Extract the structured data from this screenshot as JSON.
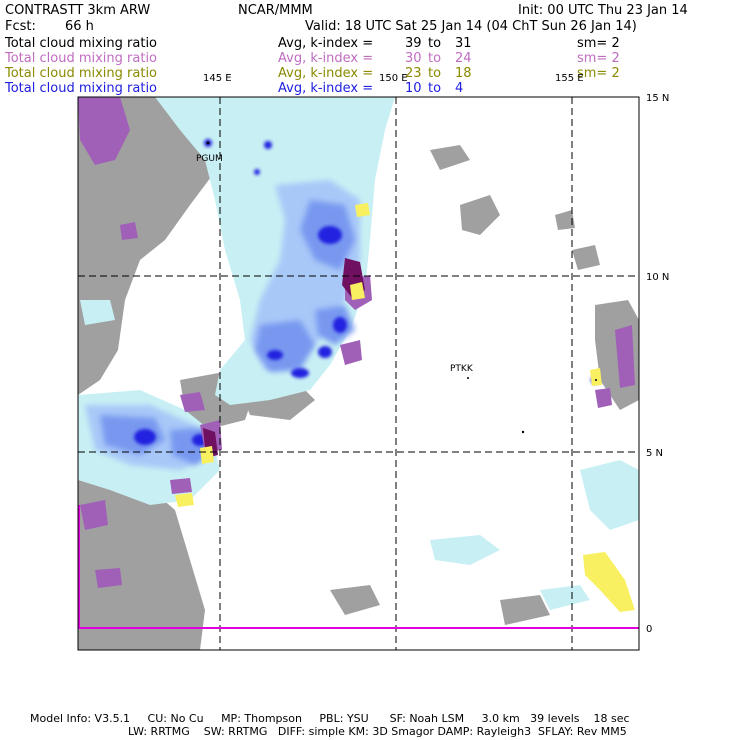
{
  "header": {
    "model": "CONTRASTT 3km ARW",
    "org": "NCAR/MMM",
    "init": "Init: 00 UTC Thu 23 Jan 14",
    "fcst_label": "Fcst:",
    "fcst_value": "66 h",
    "valid": "Valid: 18 UTC Sat 25 Jan 14 (04 ChT Sun 26 Jan 14)"
  },
  "fields": [
    {
      "name": "Total cloud mixing ratio",
      "stat": "Avg, k-index =",
      "from": "39",
      "to_word": "to",
      "to": "31",
      "sm": "sm= 2",
      "color": "#000000"
    },
    {
      "name": "Total cloud mixing ratio",
      "stat": "Avg, k-index =",
      "from": "30",
      "to_word": "to",
      "to": "24",
      "sm": "sm= 2",
      "color": "#c06cc0"
    },
    {
      "name": "Total cloud mixing ratio",
      "stat": "Avg, k-index =",
      "from": "23",
      "to_word": "to",
      "to": "18",
      "sm": "sm= 2",
      "color": "#8a8a00"
    },
    {
      "name": "Total cloud mixing ratio",
      "stat": "Avg, k-index =",
      "from": "10",
      "to_word": "to",
      "to": "4",
      "sm": "",
      "color": "#2020e0"
    }
  ],
  "map": {
    "lon_labels": [
      "145 E",
      "150 E",
      "155 E"
    ],
    "lat_labels": [
      "15 N",
      "10 N",
      "5 N",
      "0"
    ],
    "stations": [
      "PGUM",
      "PTKK"
    ],
    "colors": {
      "gray": "#a0a0a0",
      "light_cyan": "#c8f0f4",
      "light_blue": "#a8c8f8",
      "mid_blue": "#7898f0",
      "deep_blue": "#2020e0",
      "purple": "#a060b8",
      "dark_purple": "#701060",
      "yellow": "#f8f060",
      "magenta_line": "#e000e0"
    }
  },
  "footer": {
    "line1": "Model Info: V3.5.1     CU: No Cu     MP: Thompson     PBL: YSU      SF: Noah LSM     3.0 km   39 levels    18 sec",
    "line2": "LW: RRTMG    SW: RRTMG   DIFF: simple KM: 3D Smagor DAMP: Rayleigh3  SFLAY: Rev MM5"
  }
}
